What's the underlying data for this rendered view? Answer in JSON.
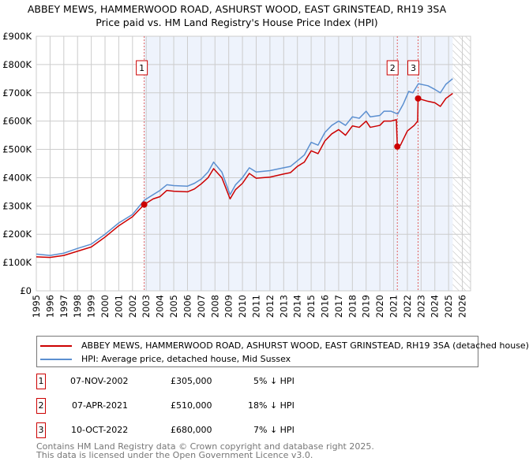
{
  "title": "ABBEY MEWS, HAMMERWOOD ROAD, ASHURST WOOD, EAST GRINSTEAD, RH19 3SA",
  "subtitle": "Price paid vs. HM Land Registry's House Price Index (HPI)",
  "colors": {
    "property": "#cc0000",
    "hpi": "#5b8fd0",
    "shade": "#eef3fc"
  },
  "chart_data": {
    "type": "line",
    "xlim": [
      1995,
      2026
    ],
    "ylim": [
      0,
      900000
    ],
    "x_ticks": [
      "1995",
      "1996",
      "1997",
      "1998",
      "1999",
      "2000",
      "2001",
      "2002",
      "2003",
      "2004",
      "2005",
      "2006",
      "2007",
      "2008",
      "2009",
      "2010",
      "2011",
      "2012",
      "2013",
      "2014",
      "2015",
      "2016",
      "2017",
      "2018",
      "2019",
      "2020",
      "2021",
      "2022",
      "2023",
      "2024",
      "2025",
      "2026"
    ],
    "y_ticks": [
      {
        "v": 0,
        "label": "£0"
      },
      {
        "v": 100000,
        "label": "£100K"
      },
      {
        "v": 200000,
        "label": "£200K"
      },
      {
        "v": 300000,
        "label": "£300K"
      },
      {
        "v": 400000,
        "label": "£400K"
      },
      {
        "v": 500000,
        "label": "£500K"
      },
      {
        "v": 600000,
        "label": "£600K"
      },
      {
        "v": 700000,
        "label": "£700K"
      },
      {
        "v": 800000,
        "label": "£800K"
      },
      {
        "v": 900000,
        "label": "£900K"
      }
    ],
    "shaded_from": 2002.85,
    "data_end": 2025.3,
    "series": [
      {
        "name": "ABBEY MEWS, HAMMERWOOD ROAD, ASHURST WOOD, EAST GRINSTEAD, RH19 3SA (detached house)",
        "color": "#cc0000",
        "points": [
          [
            1995,
            120
          ],
          [
            1996,
            118
          ],
          [
            1997,
            125
          ],
          [
            1998,
            140
          ],
          [
            1999,
            155
          ],
          [
            2000,
            190
          ],
          [
            2001,
            230
          ],
          [
            2002,
            262
          ],
          [
            2002.85,
            305
          ],
          [
            2003.5,
            325
          ],
          [
            2004,
            333
          ],
          [
            2004.5,
            355
          ],
          [
            2005,
            352
          ],
          [
            2006,
            350
          ],
          [
            2006.5,
            360
          ],
          [
            2007,
            378
          ],
          [
            2007.5,
            400
          ],
          [
            2007.9,
            432
          ],
          [
            2008.5,
            400
          ],
          [
            2009.1,
            325
          ],
          [
            2009.5,
            358
          ],
          [
            2010,
            380
          ],
          [
            2010.5,
            415
          ],
          [
            2011,
            398
          ],
          [
            2012,
            402
          ],
          [
            2013,
            413
          ],
          [
            2013.5,
            418
          ],
          [
            2014,
            440
          ],
          [
            2014.5,
            455
          ],
          [
            2015,
            495
          ],
          [
            2015.5,
            485
          ],
          [
            2016,
            530
          ],
          [
            2016.5,
            555
          ],
          [
            2017,
            570
          ],
          [
            2017.5,
            550
          ],
          [
            2018,
            583
          ],
          [
            2018.5,
            578
          ],
          [
            2019,
            600
          ],
          [
            2019.3,
            578
          ],
          [
            2020,
            585
          ],
          [
            2020.3,
            600
          ],
          [
            2020.8,
            600
          ],
          [
            2021.2,
            605
          ],
          [
            2021.27,
            510
          ],
          [
            2021.5,
            515
          ],
          [
            2022,
            565
          ],
          [
            2022.5,
            585
          ],
          [
            2022.75,
            600
          ],
          [
            2022.78,
            680
          ],
          [
            2023.5,
            670
          ],
          [
            2024,
            665
          ],
          [
            2024.4,
            652
          ],
          [
            2024.8,
            680
          ],
          [
            2025.3,
            698
          ]
        ]
      },
      {
        "name": "HPI: Average price, detached house, Mid Sussex",
        "color": "#5b8fd0",
        "points": [
          [
            1995,
            130
          ],
          [
            1996,
            125
          ],
          [
            1997,
            133
          ],
          [
            1998,
            150
          ],
          [
            1999,
            165
          ],
          [
            2000,
            200
          ],
          [
            2001,
            240
          ],
          [
            2002,
            270
          ],
          [
            2002.85,
            320
          ],
          [
            2003.5,
            340
          ],
          [
            2004,
            355
          ],
          [
            2004.5,
            375
          ],
          [
            2005,
            372
          ],
          [
            2006,
            370
          ],
          [
            2006.5,
            380
          ],
          [
            2007,
            395
          ],
          [
            2007.5,
            420
          ],
          [
            2007.9,
            455
          ],
          [
            2008.5,
            420
          ],
          [
            2009.1,
            340
          ],
          [
            2009.5,
            375
          ],
          [
            2010,
            400
          ],
          [
            2010.5,
            435
          ],
          [
            2011,
            420
          ],
          [
            2012,
            425
          ],
          [
            2013,
            435
          ],
          [
            2013.5,
            440
          ],
          [
            2014,
            460
          ],
          [
            2014.5,
            480
          ],
          [
            2015,
            525
          ],
          [
            2015.5,
            515
          ],
          [
            2016,
            560
          ],
          [
            2016.5,
            585
          ],
          [
            2017,
            600
          ],
          [
            2017.5,
            585
          ],
          [
            2018,
            615
          ],
          [
            2018.5,
            610
          ],
          [
            2019,
            635
          ],
          [
            2019.3,
            615
          ],
          [
            2020,
            620
          ],
          [
            2020.3,
            635
          ],
          [
            2020.8,
            635
          ],
          [
            2021.3,
            625
          ],
          [
            2021.7,
            660
          ],
          [
            2022.1,
            705
          ],
          [
            2022.4,
            700
          ],
          [
            2022.8,
            732
          ],
          [
            2023.5,
            725
          ],
          [
            2024,
            712
          ],
          [
            2024.4,
            700
          ],
          [
            2024.8,
            730
          ],
          [
            2025.3,
            750
          ]
        ]
      }
    ],
    "sales": [
      {
        "n": "1",
        "x": 2002.85,
        "y": 305
      },
      {
        "n": "2",
        "x": 2021.27,
        "y": 510
      },
      {
        "n": "3",
        "x": 2022.78,
        "y": 680
      }
    ]
  },
  "legend": {
    "property": "ABBEY MEWS, HAMMERWOOD ROAD, ASHURST WOOD, EAST GRINSTEAD, RH19 3SA (detached house)",
    "hpi": "HPI: Average price, detached house, Mid Sussex"
  },
  "sales_table": [
    {
      "n": "1",
      "date": "07-NOV-2002",
      "price": "£305,000",
      "hpi": "5% ↓ HPI"
    },
    {
      "n": "2",
      "date": "07-APR-2021",
      "price": "£510,000",
      "hpi": "18% ↓ HPI"
    },
    {
      "n": "3",
      "date": "10-OCT-2022",
      "price": "£680,000",
      "hpi": "7% ↓ HPI"
    }
  ],
  "footer": {
    "line1": "Contains HM Land Registry data © Crown copyright and database right 2025.",
    "line2": "This data is licensed under the Open Government Licence v3.0."
  }
}
